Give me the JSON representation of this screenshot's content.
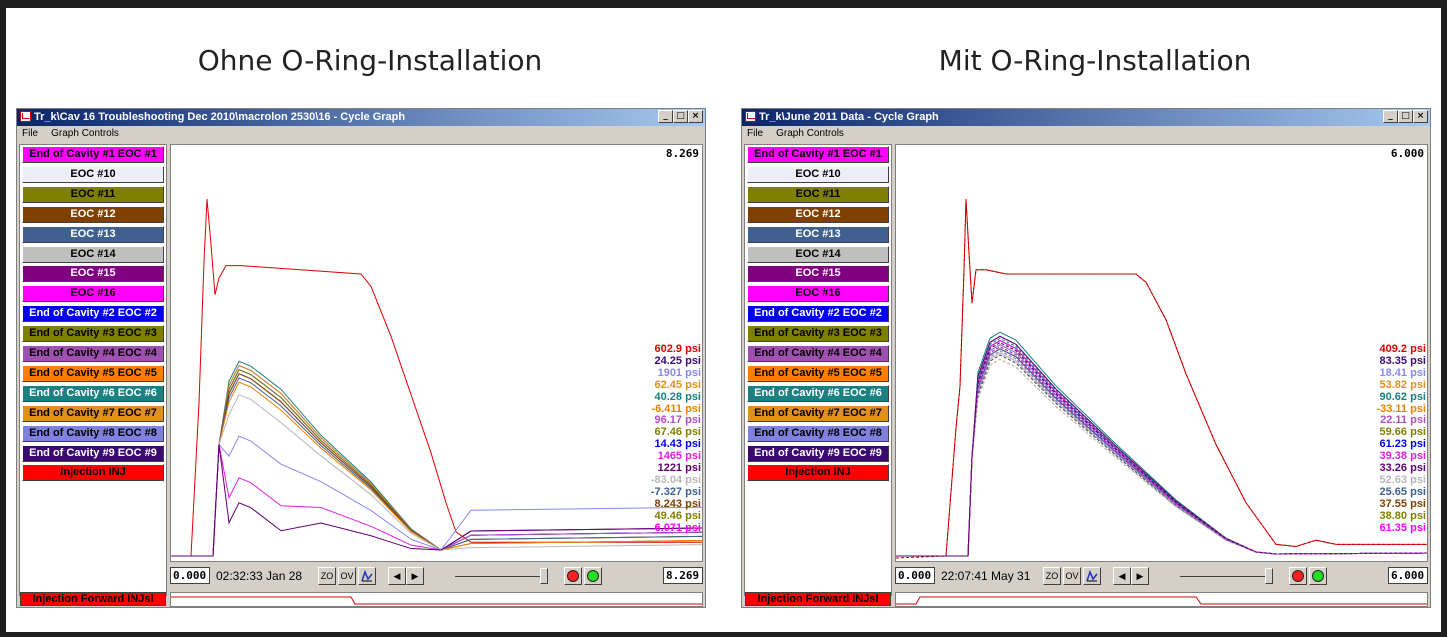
{
  "panels": [
    {
      "heading": "Ohne O-Ring-Installation",
      "window_title": "Tr_k\\Cav 16 Troubleshooting Dec 2010\\macrolon 2530\\16 - Cycle Graph",
      "menu": [
        "File",
        "Graph Controls"
      ],
      "max_value": "8.269",
      "start_value": "0.000",
      "end_value": "8.269",
      "datetime": "02:32:33 Jan 28",
      "psi_values": [
        {
          "text": "602.9 psi",
          "color": "#e00000"
        },
        {
          "text": "24.25 psi",
          "color": "#3a0a70"
        },
        {
          "text": "1901 psi",
          "color": "#8888ee"
        },
        {
          "text": "62.45 psi",
          "color": "#e09020"
        },
        {
          "text": "40.28 psi",
          "color": "#1a8080"
        },
        {
          "text": "-6.411 psi",
          "color": "#f08000"
        },
        {
          "text": "96.17 psi",
          "color": "#b050c0"
        },
        {
          "text": "67.46 psi",
          "color": "#808000"
        },
        {
          "text": "14.43 psi",
          "color": "#0000ee"
        },
        {
          "text": "1465 psi",
          "color": "#e020e0"
        },
        {
          "text": "1221 psi",
          "color": "#600070"
        },
        {
          "text": "-83.04 psi",
          "color": "#b8b8b8"
        },
        {
          "text": "-7.327 psi",
          "color": "#406090"
        },
        {
          "text": "8.243 psi",
          "color": "#804000"
        },
        {
          "text": "49.46 psi",
          "color": "#808000"
        },
        {
          "text": "6.071 psi",
          "color": "#ff00ff"
        }
      ],
      "curves": {
        "injection": {
          "color": "#e00000",
          "dashed": false
        },
        "cavities": [
          {
            "color": "#1a8080",
            "peak": 0.48,
            "tail": 0.06
          },
          {
            "color": "#3a0a70",
            "peak": 0.47,
            "tail": 0.05
          },
          {
            "color": "#e09020",
            "peak": 0.47,
            "tail": 0.04
          },
          {
            "color": "#0000ee",
            "peak": 0.46,
            "tail": 0.05
          },
          {
            "color": "#808000",
            "peak": 0.46,
            "tail": 0.04
          },
          {
            "color": "#b050c0",
            "peak": 0.45,
            "tail": 0.05
          },
          {
            "color": "#804000",
            "peak": 0.45,
            "tail": 0.03
          },
          {
            "color": "#406090",
            "peak": 0.44,
            "tail": 0.04
          },
          {
            "color": "#f08000",
            "peak": 0.43,
            "tail": 0.03
          },
          {
            "color": "#b8b8b8",
            "peak": 0.4,
            "tail": 0.02
          },
          {
            "color": "#8888ee",
            "peak": 0.3,
            "tail": 0.11
          },
          {
            "color": "#e020e0",
            "peak": 0.2,
            "tail": 0.06
          },
          {
            "color": "#600070",
            "peak": 0.14,
            "tail": 0.06
          }
        ]
      }
    },
    {
      "heading": "Mit O-Ring-Installation",
      "window_title": "Tr_k\\June 2011 Data - Cycle Graph",
      "menu": [
        "File",
        "Graph Controls"
      ],
      "max_value": "6.000",
      "start_value": "0.000",
      "end_value": "6.000",
      "datetime": "22:07:41 May 31",
      "psi_values": [
        {
          "text": "409.2 psi",
          "color": "#e00000"
        },
        {
          "text": "83.35 psi",
          "color": "#3a0a70"
        },
        {
          "text": "18.41 psi",
          "color": "#8888ee"
        },
        {
          "text": "53.82 psi",
          "color": "#e09020"
        },
        {
          "text": "90.62 psi",
          "color": "#1a8080"
        },
        {
          "text": "-33.11 psi",
          "color": "#f08000"
        },
        {
          "text": "22.11 psi",
          "color": "#b050c0"
        },
        {
          "text": "59.66 psi",
          "color": "#808000"
        },
        {
          "text": "61.23 psi",
          "color": "#0000ee"
        },
        {
          "text": "39.38 psi",
          "color": "#e020e0"
        },
        {
          "text": "33.26 psi",
          "color": "#600070"
        },
        {
          "text": "52.63 psi",
          "color": "#b8b8b8"
        },
        {
          "text": "25.65 psi",
          "color": "#406090"
        },
        {
          "text": "37.55 psi",
          "color": "#804000"
        },
        {
          "text": "38.80 psi",
          "color": "#808000"
        },
        {
          "text": "61.35 psi",
          "color": "#ff00ff"
        }
      ],
      "curves": {
        "injection": {
          "color": "#e00000",
          "dashed": true
        },
        "cavities": [
          {
            "color": "#1a8080",
            "peak": 0.55,
            "tail": 0.0
          },
          {
            "color": "#3a0a70",
            "peak": 0.54,
            "tail": 0.0
          },
          {
            "color": "#e09020",
            "peak": 0.53,
            "tail": 0.0
          },
          {
            "color": "#0000ee",
            "peak": 0.53,
            "tail": 0.0
          },
          {
            "color": "#808000",
            "peak": 0.52,
            "tail": 0.0
          },
          {
            "color": "#b050c0",
            "peak": 0.52,
            "tail": 0.0
          },
          {
            "color": "#804000",
            "peak": 0.51,
            "tail": 0.0
          },
          {
            "color": "#406090",
            "peak": 0.51,
            "tail": 0.0
          },
          {
            "color": "#f08000",
            "peak": 0.5,
            "tail": 0.0
          },
          {
            "color": "#b8b8b8",
            "peak": 0.5,
            "tail": 0.0
          },
          {
            "color": "#8888ee",
            "peak": 0.52,
            "tail": 0.0
          },
          {
            "color": "#e020e0",
            "peak": 0.53,
            "tail": 0.0
          },
          {
            "color": "#600070",
            "peak": 0.54,
            "tail": 0.0
          }
        ]
      }
    }
  ],
  "legend_items": [
    {
      "label": "End of Cavity #1 EOC #1",
      "bg": "#ff00ff",
      "fg": "#000000"
    },
    {
      "label": "EOC #10",
      "bg": "#eeeef8",
      "fg": "#000000"
    },
    {
      "label": "EOC #11",
      "bg": "#808000",
      "fg": "#000000"
    },
    {
      "label": "EOC #12",
      "bg": "#804000",
      "fg": "#ffffff"
    },
    {
      "label": "EOC #13",
      "bg": "#406090",
      "fg": "#ffffff"
    },
    {
      "label": "EOC #14",
      "bg": "#c0c0c0",
      "fg": "#000000"
    },
    {
      "label": "EOC #15",
      "bg": "#800080",
      "fg": "#ffffff"
    },
    {
      "label": "EOC #16",
      "bg": "#ff00ff",
      "fg": "#000000"
    },
    {
      "label": "End of Cavity #2 EOC #2",
      "bg": "#0000ee",
      "fg": "#ffffff"
    },
    {
      "label": "End of Cavity #3 EOC #3",
      "bg": "#808000",
      "fg": "#000000"
    },
    {
      "label": "End of Cavity #4 EOC #4",
      "bg": "#a050b0",
      "fg": "#000000"
    },
    {
      "label": "End of Cavity #5 EOC #5",
      "bg": "#ff8000",
      "fg": "#000000"
    },
    {
      "label": "End of Cavity #6 EOC #6",
      "bg": "#1a8080",
      "fg": "#ffffff"
    },
    {
      "label": "End of Cavity #7 EOC #7",
      "bg": "#e09020",
      "fg": "#000000"
    },
    {
      "label": "End of Cavity #8 EOC #8",
      "bg": "#8080e0",
      "fg": "#000000"
    },
    {
      "label": "End of Cavity #9 EOC #9",
      "bg": "#3a0a70",
      "fg": "#ffffff"
    },
    {
      "label": "Injection INJ",
      "bg": "#ff0000",
      "fg": "#000000"
    }
  ],
  "bottom_label": "Injection Forward INJsl",
  "toolbar": {
    "zo": "ZO",
    "ov": "OV",
    "prev": "◀",
    "next": "▶"
  },
  "window_buttons": {
    "min": "_",
    "max": "□",
    "close": "×"
  },
  "icons": [
    "app-icon",
    "graph-icon",
    "record-icon",
    "play-icon"
  ]
}
